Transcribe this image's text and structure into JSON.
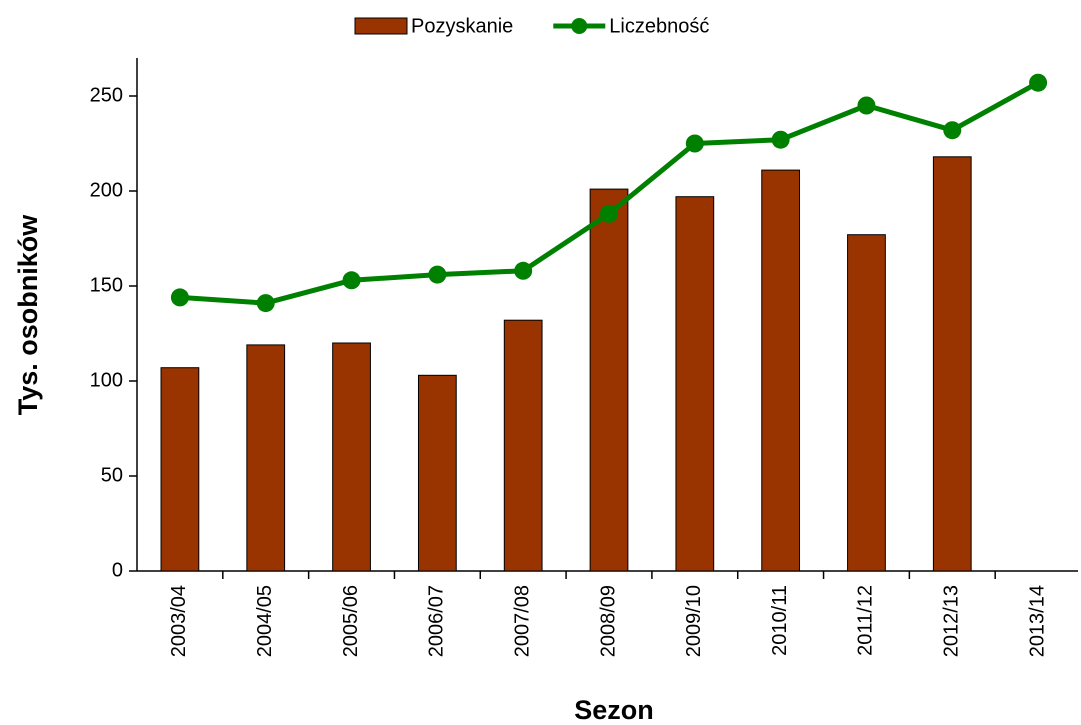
{
  "chart_data": {
    "type": "bar_line",
    "x_label": "Sezon",
    "y_label": "Tys. osobników",
    "categories": [
      "2003/04",
      "2004/05",
      "2005/06",
      "2006/07",
      "2007/08",
      "2008/09",
      "2009/10",
      "2010/11",
      "2011/12",
      "2012/13",
      "2013/14"
    ],
    "series": [
      {
        "name": "Pozyskanie",
        "type": "bar",
        "color": "#993300",
        "values": [
          107,
          119,
          120,
          103,
          132,
          201,
          197,
          211,
          177,
          218,
          null
        ]
      },
      {
        "name": "Liczebność",
        "type": "line",
        "color": "#008000",
        "values": [
          144,
          141,
          153,
          156,
          158,
          188,
          225,
          227,
          245,
          232,
          257
        ]
      }
    ],
    "ylim": [
      0,
      270
    ],
    "yticks": [
      0,
      50,
      100,
      150,
      200,
      250
    ],
    "grid": false,
    "legend": "top"
  }
}
